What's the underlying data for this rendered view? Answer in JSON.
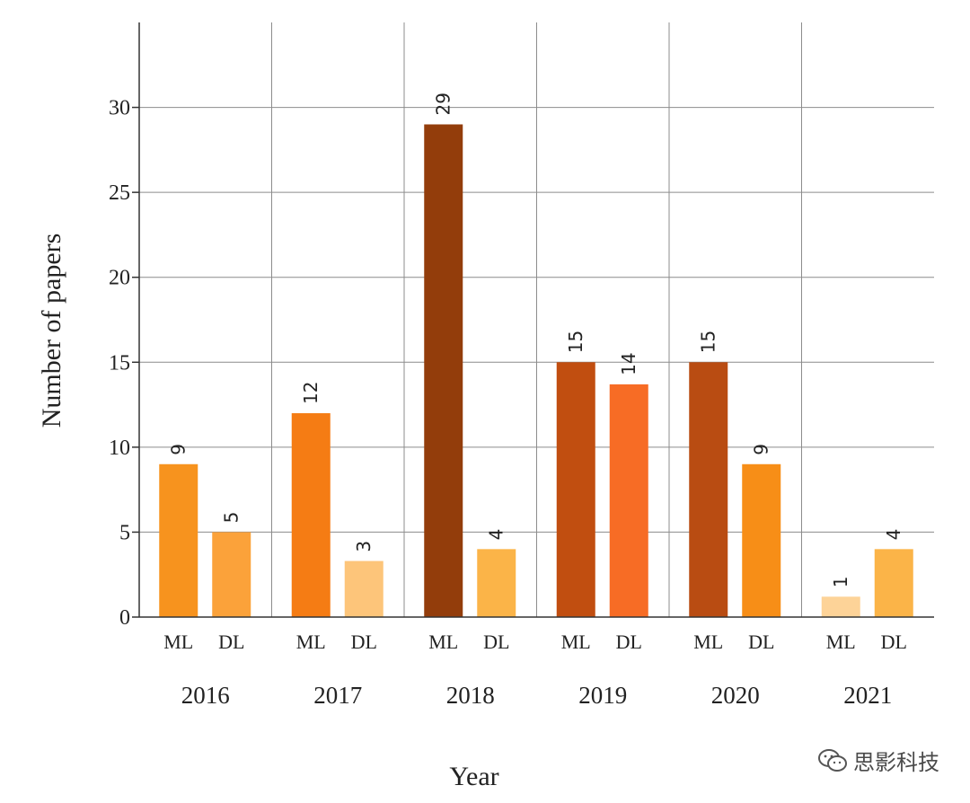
{
  "chart_data": {
    "type": "bar",
    "title": "",
    "xlabel": "Year",
    "ylabel": "Number of papers",
    "ylim": [
      0,
      35
    ],
    "yticks": [
      0,
      5,
      10,
      15,
      20,
      25,
      30
    ],
    "grid": true,
    "series_labels": [
      "ML",
      "DL"
    ],
    "groups": [
      {
        "year": "2016",
        "bars": [
          {
            "name": "ML",
            "value": 9,
            "label": "9",
            "color": "#F7931E"
          },
          {
            "name": "DL",
            "value": 5,
            "label": "5",
            "color": "#FBA23A"
          }
        ]
      },
      {
        "year": "2017",
        "bars": [
          {
            "name": "ML",
            "value": 12,
            "label": "12",
            "color": "#F57C14"
          },
          {
            "name": "DL",
            "value": 3.3,
            "label": "3",
            "color": "#FDC57A"
          }
        ]
      },
      {
        "year": "2018",
        "bars": [
          {
            "name": "ML",
            "value": 29,
            "label": "29",
            "color": "#933D0B"
          },
          {
            "name": "DL",
            "value": 4,
            "label": "4",
            "color": "#FBB448"
          }
        ]
      },
      {
        "year": "2019",
        "bars": [
          {
            "name": "ML",
            "value": 15,
            "label": "15",
            "color": "#C14E10"
          },
          {
            "name": "DL",
            "value": 13.7,
            "label": "14",
            "color": "#F76C25"
          }
        ]
      },
      {
        "year": "2020",
        "bars": [
          {
            "name": "ML",
            "value": 15,
            "label": "15",
            "color": "#B94C12"
          },
          {
            "name": "DL",
            "value": 9,
            "label": "9",
            "color": "#F78E17"
          }
        ]
      },
      {
        "year": "2021",
        "bars": [
          {
            "name": "ML",
            "value": 1.2,
            "label": "1",
            "color": "#FDD398"
          },
          {
            "name": "DL",
            "value": 4,
            "label": "4",
            "color": "#FBB448"
          }
        ]
      }
    ]
  },
  "watermark": {
    "text": "思影科技",
    "icon": "wechat-icon"
  }
}
